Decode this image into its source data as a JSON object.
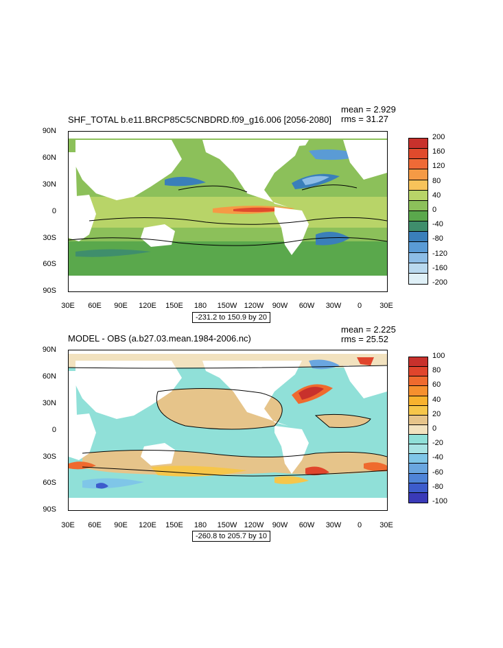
{
  "panels": [
    {
      "title": "SHF_TOTAL b.e11.BRCP85C5CNBDRD.f09_g16.006 [2056-2080]",
      "mean_text": "mean = 2.929",
      "rms_text": "rms = 31.27",
      "range_text": "-231.2 to 150.9 by 20",
      "lat_ticks": [
        "90N",
        "60N",
        "30N",
        "0",
        "30S",
        "60S",
        "90S"
      ],
      "lon_ticks": [
        "30E",
        "60E",
        "90E",
        "120E",
        "150E",
        "180",
        "150W",
        "120W",
        "90W",
        "60W",
        "30W",
        "0",
        "30E"
      ],
      "colorbar": {
        "labels": [
          "200",
          "160",
          "120",
          "80",
          "40",
          "0",
          "-40",
          "-80",
          "-120",
          "-160",
          "-200"
        ],
        "colors": [
          "#c8312c",
          "#e04a2c",
          "#ef6a36",
          "#f59a45",
          "#f8c35a",
          "#b8d468",
          "#8cc05a",
          "#5aa84c",
          "#3f8e6c",
          "#3a7fba",
          "#5a9bd5",
          "#8dbde6",
          "#b9d9ef",
          "#dff0f7"
        ]
      }
    },
    {
      "title": "MODEL - OBS (a.b27.03.mean.1984-2006.nc)",
      "mean_text": "mean = 2.225",
      "rms_text": "rms = 25.52",
      "range_text": "-260.8 to 205.7 by 10",
      "lat_ticks": [
        "90N",
        "60N",
        "30N",
        "0",
        "30S",
        "60S",
        "90S"
      ],
      "lon_ticks": [
        "30E",
        "60E",
        "90E",
        "120E",
        "150E",
        "180",
        "150W",
        "120W",
        "90W",
        "60W",
        "30W",
        "0",
        "30E"
      ],
      "colorbar": {
        "labels": [
          "100",
          "80",
          "60",
          "40",
          "20",
          "0",
          "-20",
          "-40",
          "-60",
          "-80",
          "-100"
        ],
        "colors": [
          "#c8312c",
          "#e0452c",
          "#ef6a2e",
          "#f6902e",
          "#f8b22e",
          "#f6c64a",
          "#e6c48a",
          "#f2e2bf",
          "#90e0d8",
          "#a8e4e4",
          "#7fc6e8",
          "#6aa6e0",
          "#4f84d8",
          "#3d5ccc",
          "#3a3ab8"
        ]
      }
    }
  ]
}
